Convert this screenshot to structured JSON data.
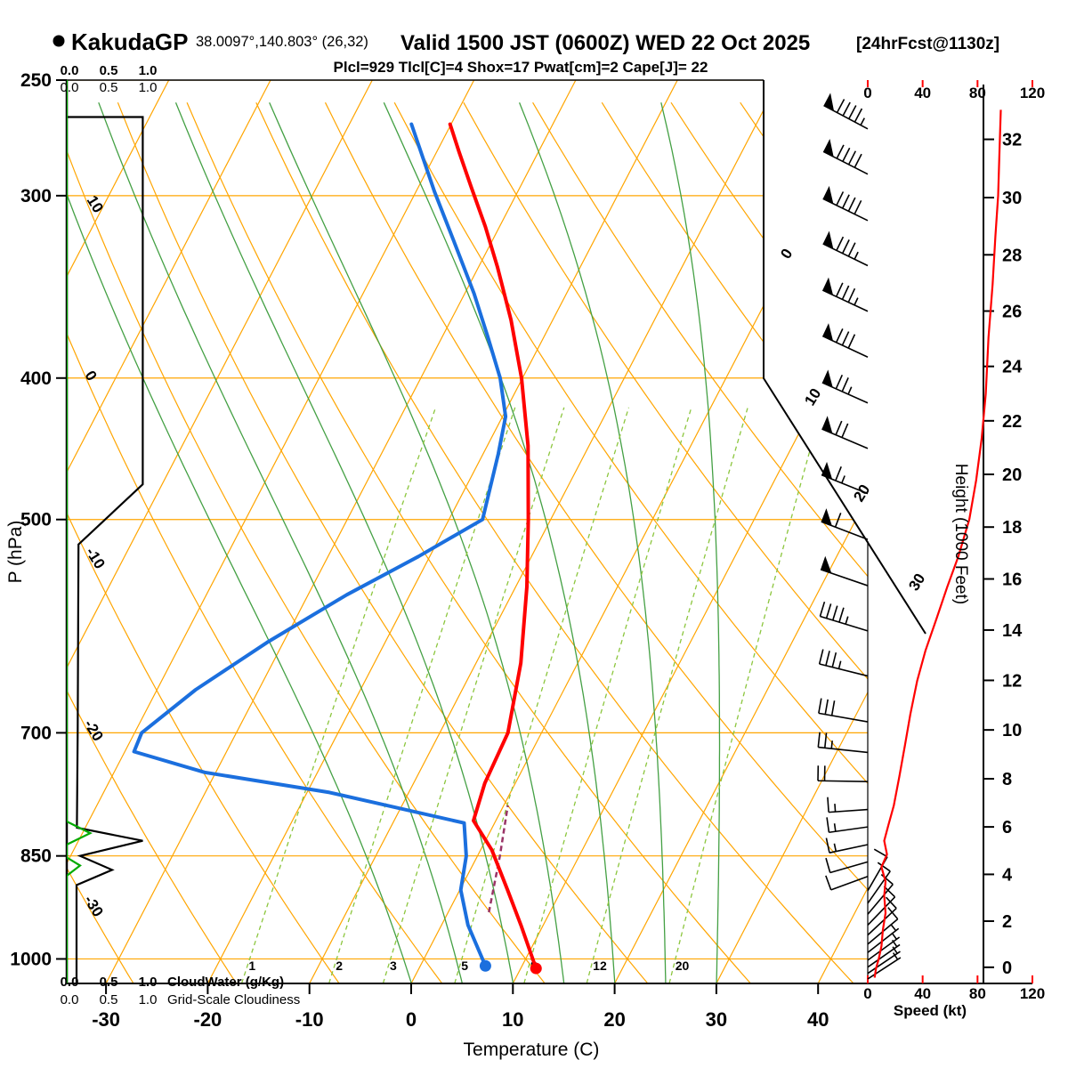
{
  "header": {
    "station": "KakudaGP",
    "coords": "38.0097°,140.803° (26,32)",
    "valid": "Valid 1500 JST (0600Z) WED 22 Oct 2025",
    "fcst": "[24hrFcst@1130z]",
    "indices": "Plcl=929 Tlcl[C]=4 Shox=17 Pwat[cm]=2 Cape[J]= 22"
  },
  "axes": {
    "pressure": {
      "label": "P (hPa)",
      "ticks": [
        250,
        300,
        400,
        500,
        700,
        850,
        1000
      ]
    },
    "temperature": {
      "label": "Temperature (C)",
      "ticks": [
        -30,
        -20,
        -10,
        0,
        10,
        20,
        30,
        40
      ]
    },
    "height": {
      "label": "Height (1000 Feet)",
      "ticks": [
        0,
        2,
        4,
        6,
        8,
        10,
        12,
        14,
        16,
        18,
        20,
        22,
        24,
        26,
        28,
        30,
        32
      ]
    },
    "speed": {
      "label": "Speed (kt)",
      "ticks": [
        0,
        40,
        80,
        120
      ]
    }
  },
  "legend": {
    "cloudwater": {
      "scale": [
        "0.0",
        "0.5",
        "1.0"
      ],
      "label": "CloudWater (g/Kg)"
    },
    "cloudiness": {
      "scale": [
        "0.0",
        "0.5",
        "1.0"
      ],
      "label": "Grid-Scale Cloudiness"
    }
  },
  "colors": {
    "grid_orange": "#FFA500",
    "green_moist": "#44A044",
    "green_mix": "#8CC63E",
    "green_cloudwater": "#00AA00",
    "red": "#FF0000",
    "blue": "#1B6FDE",
    "purple_text": "#990099",
    "parcel": "#993366",
    "black": "#000000"
  },
  "chart_data": {
    "type": "skew_t_log_p_sounding",
    "pressure_range_hpa": [
      250,
      1039
    ],
    "pressure_lines_hpa": [
      250,
      300,
      400,
      500,
      700,
      850,
      1000
    ],
    "isotherms_c": {
      "min": -80,
      "max": 40,
      "step": 10
    },
    "dry_adiabats_c": {
      "min": -40,
      "max": 120,
      "step": 10
    },
    "moist_adiabats_start_c": [
      0,
      5,
      10,
      15,
      20,
      25,
      30
    ],
    "mixing_ratio_g_kg": [
      1,
      2,
      3,
      5,
      8,
      12,
      20
    ],
    "dry_adiabat_labels_c": [
      10,
      0,
      -10,
      -20,
      -30
    ],
    "isotherm_labels_right_c": [
      0,
      10,
      20,
      30
    ],
    "temperature_profile": [
      [
        1015,
        11.5
      ],
      [
        948,
        7.8
      ],
      [
        897,
        4.7
      ],
      [
        842,
        1.1
      ],
      [
        804,
        -2.2
      ],
      [
        758,
        -3.0
      ],
      [
        700,
        -3.3
      ],
      [
        627,
        -5.6
      ],
      [
        556,
        -8.9
      ],
      [
        500,
        -12.2
      ],
      [
        445,
        -16.0
      ],
      [
        400,
        -20.1
      ],
      [
        365,
        -24.1
      ],
      [
        336,
        -28.1
      ],
      [
        315,
        -31.4
      ],
      [
        296,
        -34.8
      ],
      [
        280,
        -37.8
      ],
      [
        268,
        -40.1
      ]
    ],
    "dewpoint_profile": [
      [
        1011,
        6.4
      ],
      [
        948,
        2.6
      ],
      [
        897,
        0.1
      ],
      [
        850,
        -1.1
      ],
      [
        807,
        -3.0
      ],
      [
        769,
        -17.8
      ],
      [
        745,
        -31.1
      ],
      [
        721,
        -39.1
      ],
      [
        700,
        -39.3
      ],
      [
        654,
        -36.2
      ],
      [
        607,
        -31.6
      ],
      [
        563,
        -26.2
      ],
      [
        530,
        -21.1
      ],
      [
        500,
        -16.7
      ],
      [
        451,
        -18.5
      ],
      [
        425,
        -19.7
      ],
      [
        400,
        -22.2
      ],
      [
        375,
        -25.5
      ],
      [
        350,
        -29.1
      ],
      [
        322,
        -33.8
      ],
      [
        298,
        -38.2
      ],
      [
        268,
        -43.9
      ]
    ],
    "parcel_path_c": [
      [
        929,
        4.0
      ],
      [
        850,
        2.2
      ],
      [
        785,
        0.4
      ]
    ],
    "surface_dots": {
      "temperature": [
        1015,
        11.5
      ],
      "dewpoint": [
        1011,
        6.4
      ]
    },
    "wind_speed_profile_kt": [
      [
        262,
        97
      ],
      [
        280,
        96
      ],
      [
        300,
        95
      ],
      [
        320,
        93
      ],
      [
        345,
        91
      ],
      [
        375,
        88
      ],
      [
        410,
        86
      ],
      [
        440,
        83
      ],
      [
        470,
        79
      ],
      [
        500,
        74
      ],
      [
        530,
        66
      ],
      [
        556,
        58
      ],
      [
        585,
        50
      ],
      [
        615,
        42
      ],
      [
        645,
        36
      ],
      [
        680,
        31
      ],
      [
        715,
        27
      ],
      [
        750,
        23
      ],
      [
        785,
        19
      ],
      [
        810,
        15
      ],
      [
        830,
        12
      ],
      [
        848,
        14
      ],
      [
        865,
        10
      ],
      [
        885,
        13
      ],
      [
        905,
        12
      ],
      [
        930,
        13
      ],
      [
        955,
        11
      ],
      [
        980,
        10
      ],
      [
        1000,
        8
      ],
      [
        1015,
        6
      ],
      [
        1030,
        5
      ]
    ],
    "wind_barbs": [
      [
        270,
        95,
        152
      ],
      [
        290,
        92,
        153
      ],
      [
        312,
        90,
        154
      ],
      [
        335,
        88,
        154
      ],
      [
        360,
        85,
        155
      ],
      [
        387,
        80,
        155
      ],
      [
        416,
        78,
        156
      ],
      [
        447,
        72,
        157
      ],
      [
        480,
        68,
        158
      ],
      [
        516,
        60,
        159
      ],
      [
        555,
        52,
        161
      ],
      [
        596,
        45,
        163
      ],
      [
        640,
        35,
        166
      ],
      [
        688,
        30,
        170
      ],
      [
        722,
        25,
        174
      ],
      [
        756,
        22,
        179
      ],
      [
        790,
        18,
        184
      ],
      [
        812,
        15,
        188
      ],
      [
        835,
        15,
        192
      ],
      [
        858,
        12,
        196
      ],
      [
        878,
        10,
        200
      ],
      [
        898,
        12,
        60
      ],
      [
        916,
        13,
        55
      ],
      [
        932,
        14,
        50
      ],
      [
        948,
        13,
        46
      ],
      [
        963,
        12,
        43
      ],
      [
        977,
        10,
        40
      ],
      [
        990,
        9,
        38
      ],
      [
        1002,
        8,
        36
      ],
      [
        1013,
        7,
        35
      ],
      [
        1023,
        6,
        34
      ],
      [
        1032,
        5,
        33
      ]
    ],
    "grid_scale_cloudiness_profile": [
      [
        265,
        0.0
      ],
      [
        265,
        0.97
      ],
      [
        473,
        0.97
      ],
      [
        520,
        0.15
      ],
      [
        700,
        0.14
      ],
      [
        813,
        0.13
      ],
      [
        830,
        0.97
      ],
      [
        850,
        0.17
      ],
      [
        869,
        0.58
      ],
      [
        890,
        0.125
      ],
      [
        1039,
        0.125
      ]
    ],
    "cloud_water_profile_g_kg": [
      [
        250,
        0
      ],
      [
        805,
        0
      ],
      [
        820,
        0.3
      ],
      [
        835,
        0
      ],
      [
        852,
        0
      ],
      [
        863,
        0.17
      ],
      [
        877,
        0
      ],
      [
        1039,
        0
      ]
    ]
  }
}
